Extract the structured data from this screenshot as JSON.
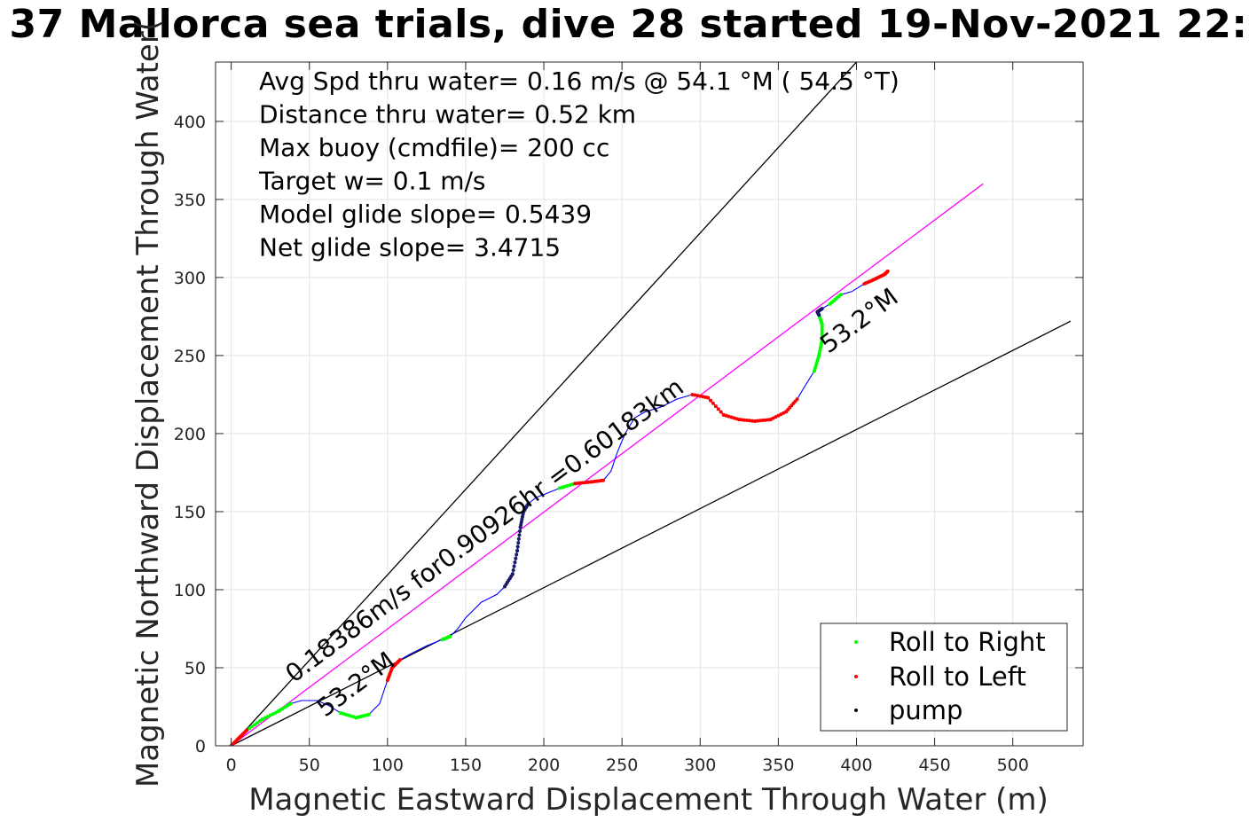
{
  "title": "37 Mallorca sea trials, dive 28 started 19-Nov-2021 22:",
  "chart_data": {
    "type": "line",
    "title": "37 Mallorca sea trials, dive 28 started 19-Nov-2021 22:",
    "xlabel": "Magnetic Eastward Displacement Through Water (m)",
    "ylabel": "Magnetic Northward Displacement Through Water(",
    "xlim": [
      -10,
      545
    ],
    "ylim": [
      0,
      438
    ],
    "x_ticks": [
      "0",
      "50",
      "100",
      "150",
      "200",
      "250",
      "300",
      "350",
      "400",
      "450",
      "500"
    ],
    "y_ticks": [
      "0",
      "50",
      "100",
      "150",
      "200",
      "250",
      "300",
      "350",
      "400"
    ],
    "grid": true,
    "legend_position": "bottom-right",
    "info_lines": [
      "Avg Spd thru water=  0.16 m/s @  54.1 °M ( 54.5 °T)",
      "Distance thru water=  0.52 km",
      "Max buoy (cmdfile)= 200 cc",
      "Target w= 0.1 m/s",
      "Model glide slope= 0.5439",
      "Net glide slope= 3.4715"
    ],
    "annotations": {
      "speed_label": "0.18386m/s for0.90926hr =0.60183km",
      "heading_label_start": "53.2°M",
      "heading_label_end": "53.2°M"
    },
    "legend": [
      {
        "label": "Roll to Right",
        "color": "#00ff00"
      },
      {
        "label": "Roll to Left",
        "color": "#ff0000"
      },
      {
        "label": "pump",
        "color": "#000000"
      }
    ],
    "reference_lines": [
      {
        "name": "upper bound",
        "color": "#000000",
        "x": [
          0,
          400
        ],
        "y": [
          0,
          438
        ]
      },
      {
        "name": "lower bound",
        "color": "#000000",
        "x": [
          0,
          537
        ],
        "y": [
          0,
          272
        ]
      },
      {
        "name": "mean heading",
        "color": "#ff00ff",
        "x": [
          0,
          481
        ],
        "y": [
          0,
          360
        ]
      }
    ],
    "track": {
      "color": "#0000ff",
      "x": [
        0,
        5,
        10,
        20,
        30,
        38,
        45,
        55,
        62,
        70,
        80,
        88,
        95,
        100,
        103,
        108,
        115,
        125,
        135,
        140,
        145,
        150,
        160,
        170,
        175,
        180,
        183,
        185,
        187,
        190,
        195,
        200,
        210,
        220,
        230,
        238,
        243,
        247,
        252,
        258,
        265,
        275,
        285,
        295,
        305,
        315,
        325,
        335,
        345,
        355,
        362,
        368,
        373,
        376,
        378,
        378,
        376,
        375,
        378,
        383,
        390,
        397,
        405,
        412,
        418,
        420
      ],
      "y": [
        0,
        5,
        10,
        17,
        22,
        27,
        29,
        29,
        26,
        21,
        18,
        20,
        27,
        42,
        50,
        55,
        59,
        64,
        68,
        70,
        75,
        82,
        92,
        97,
        102,
        110,
        125,
        140,
        150,
        155,
        159,
        161,
        165,
        168,
        169,
        170,
        176,
        188,
        200,
        210,
        214,
        217,
        222,
        225,
        223,
        212,
        209,
        208,
        209,
        214,
        222,
        232,
        240,
        250,
        260,
        270,
        276,
        278,
        280,
        283,
        289,
        291,
        296,
        299,
        302,
        304
      ]
    },
    "roll_right_ranges": [
      [
        2,
        5
      ],
      [
        9,
        11
      ],
      [
        18,
        19
      ],
      [
        32,
        33
      ],
      [
        52,
        56
      ],
      [
        59,
        60
      ]
    ],
    "roll_left_ranges": [
      [
        0,
        2
      ],
      [
        13,
        15
      ],
      [
        33,
        35
      ],
      [
        43,
        50
      ],
      [
        62,
        65
      ]
    ],
    "pump_ranges": [
      [
        24,
        29
      ],
      [
        56,
        58
      ]
    ]
  }
}
